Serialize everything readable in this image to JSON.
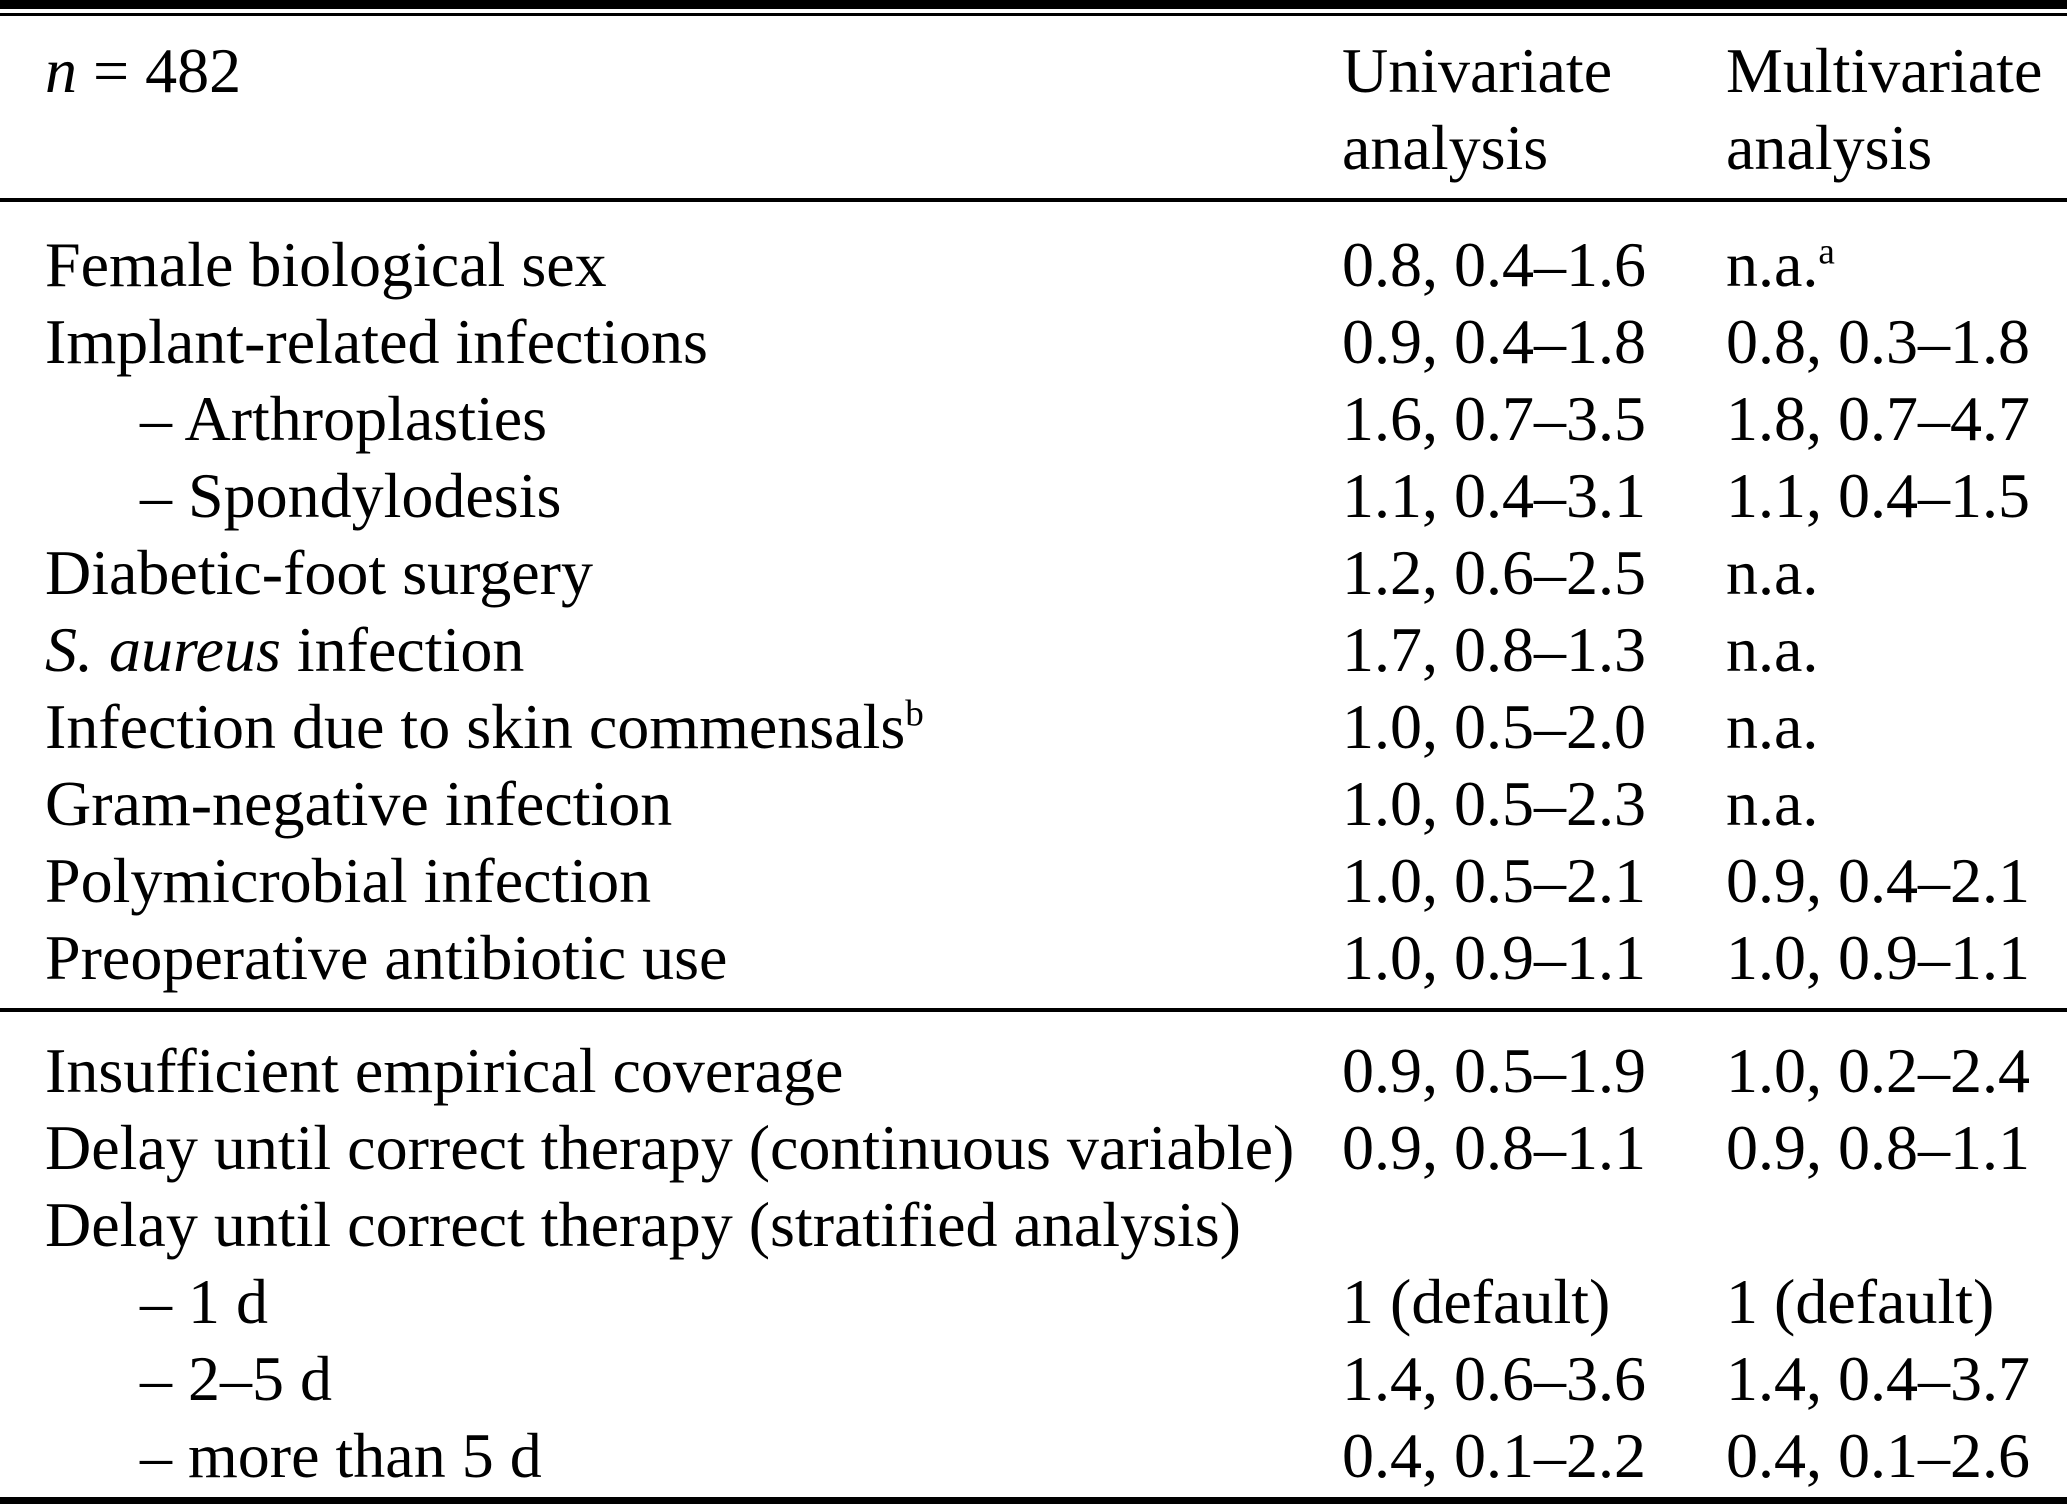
{
  "table": {
    "header": {
      "n_var": "n",
      "n_rest": " = 482",
      "col_univariate": "Univariate analysis",
      "col_multivariate": "Multivariate analysis"
    },
    "section1": [
      {
        "label": "Female biological sex",
        "uni": "0.8, 0.4–1.6",
        "multi": "n.a.",
        "multi_sup": "a"
      },
      {
        "label": "Implant-related infections",
        "uni": "0.9, 0.4–1.8",
        "multi": "0.8, 0.3–1.8"
      },
      {
        "label": "– Arthroplasties",
        "uni": "1.6, 0.7–3.5",
        "multi": "1.8, 0.7–4.7"
      },
      {
        "label": "– Spondylodesis",
        "uni": "1.1, 0.4–3.1",
        "multi": "1.1, 0.4–1.5"
      },
      {
        "label": "Diabetic-foot surgery",
        "uni": "1.2, 0.6–2.5",
        "multi": "n.a."
      },
      {
        "label_italic": "S. aureus",
        "label": " infection",
        "uni": "1.7, 0.8–1.3",
        "multi": "n.a."
      },
      {
        "label": "Infection due to skin commensals",
        "label_sup": "b",
        "uni": "1.0, 0.5–2.0",
        "multi": "n.a."
      },
      {
        "label": "Gram-negative infection",
        "uni": "1.0, 0.5–2.3",
        "multi": "n.a."
      },
      {
        "label": "Polymicrobial infection",
        "uni": "1.0, 0.5–2.1",
        "multi": "0.9, 0.4–2.1"
      },
      {
        "label": "Preoperative antibiotic use",
        "uni": "1.0, 0.9–1.1",
        "multi": "1.0, 0.9–1.1"
      }
    ],
    "section2": [
      {
        "label": "Insufficient empirical coverage",
        "uni": "0.9, 0.5–1.9",
        "multi": "1.0, 0.2–2.4"
      },
      {
        "label": "Delay until correct therapy (continuous variable)",
        "uni": "0.9, 0.8–1.1",
        "multi": "0.9, 0.8–1.1"
      },
      {
        "label": "Delay until correct therapy (stratified analysis)",
        "uni": "",
        "multi": ""
      },
      {
        "label": "– 1 d",
        "uni": "1 (default)",
        "multi": "1 (default)"
      },
      {
        "label": "– 2–5 d",
        "uni": "1.4, 0.6–3.6",
        "multi": "1.4, 0.4–3.7"
      },
      {
        "label": "– more than 5 d",
        "uni": "0.4, 0.1–2.2",
        "multi": "0.4, 0.1–2.6"
      }
    ]
  }
}
